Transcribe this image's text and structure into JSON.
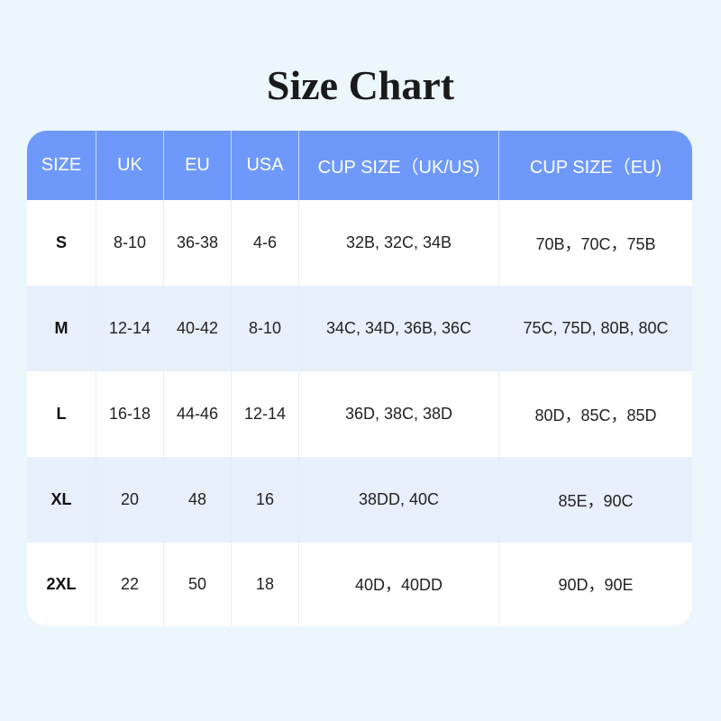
{
  "title": "Size Chart",
  "colors": {
    "header": "#6e99fb",
    "alt_row": "#e8effd",
    "background": "#ebf6fd"
  },
  "headers": [
    "SIZE",
    "UK",
    "EU",
    "USA",
    "CUP SIZE（UK/US)",
    "CUP SIZE（EU)"
  ],
  "rows": [
    [
      "S",
      "8-10",
      "36-38",
      "4-6",
      "32B, 32C, 34B",
      "70B，70C，75B"
    ],
    [
      "M",
      "12-14",
      "40-42",
      "8-10",
      "34C, 34D, 36B, 36C",
      "75C, 75D, 80B, 80C"
    ],
    [
      "L",
      "16-18",
      "44-46",
      "12-14",
      "36D, 38C, 38D",
      "80D，85C，85D"
    ],
    [
      "XL",
      "20",
      "48",
      "16",
      "38DD, 40C",
      "85E，90C"
    ],
    [
      "2XL",
      "22",
      "50",
      "18",
      "40D，40DD",
      "90D，90E"
    ]
  ]
}
